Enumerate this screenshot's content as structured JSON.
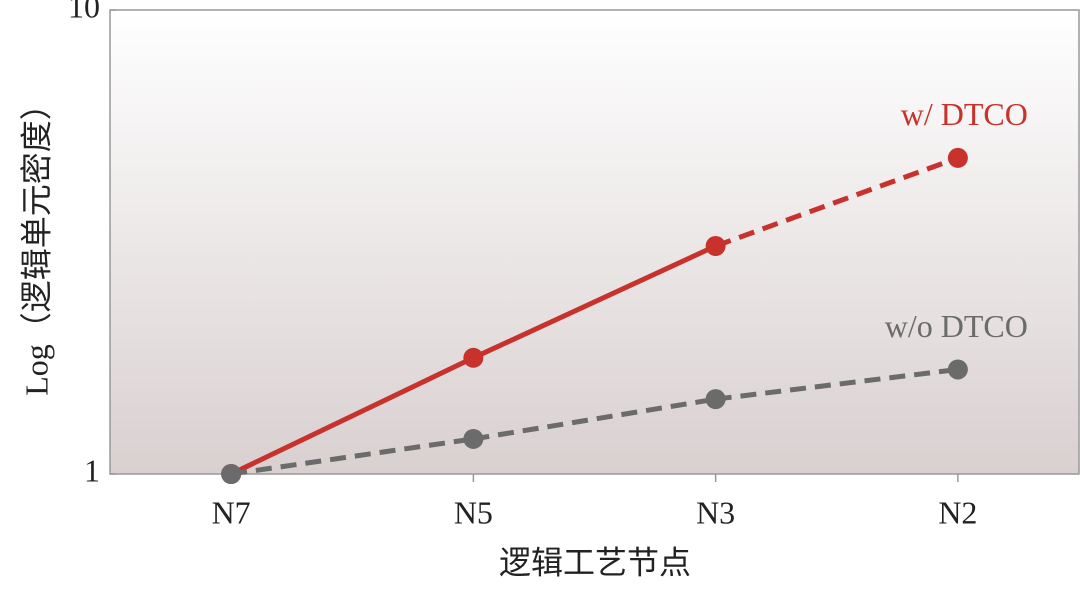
{
  "chart_data": {
    "type": "line",
    "y_label": "Log（逻辑单元密度）",
    "x_label": "逻辑工艺节点",
    "categories": [
      "N7",
      "N5",
      "N3",
      "N2"
    ],
    "series": [
      {
        "name": "w/ DTCO",
        "color": "#c8322c",
        "values": [
          1,
          1.78,
          3.1,
          4.8
        ],
        "dashed_from": 2
      },
      {
        "name": "w/o DTCO",
        "color": "#6b6b6b",
        "values": [
          1,
          1.19,
          1.45,
          1.68
        ],
        "dashed_from": 0
      }
    ],
    "ylim": [
      1,
      10
    ],
    "yticks": [
      1,
      10
    ],
    "log_y": true
  }
}
